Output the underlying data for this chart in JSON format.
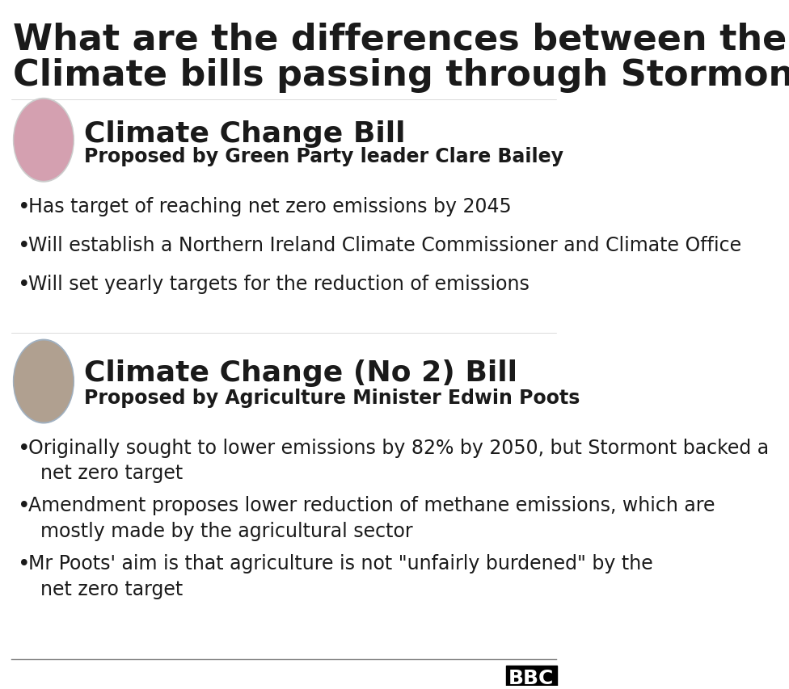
{
  "bg_color": "#ffffff",
  "title_line1": "What are the differences between the",
  "title_line2": "Climate bills passing through Stormont?",
  "title_fontsize": 32,
  "title_color": "#1a1a1a",
  "title_weight": "bold",
  "bill1_title": "Climate Change Bill",
  "bill1_subtitle": "Proposed by Green Party leader Clare Bailey",
  "bill1_title_fontsize": 26,
  "bill1_subtitle_fontsize": 17,
  "bill1_title_weight": "bold",
  "bill1_subtitle_weight": "bold",
  "bill1_bullets": [
    "Has target of reaching net zero emissions by 2045",
    "Will establish a Northern Ireland Climate Commissioner and Climate Office",
    "Will set yearly targets for the reduction of emissions"
  ],
  "bill1_bullet_fontsize": 17,
  "bill2_title": "Climate Change (No 2) Bill",
  "bill2_subtitle": "Proposed by Agriculture Minister Edwin Poots",
  "bill2_title_fontsize": 26,
  "bill2_subtitle_fontsize": 17,
  "bill2_title_weight": "bold",
  "bill2_subtitle_weight": "bold",
  "bill2_bullets": [
    "Originally sought to lower emissions by 82% by 2050, but Stormont backed a\n  net zero target",
    "Amendment proposes lower reduction of methane emissions, which are\n  mostly made by the agricultural sector",
    "Mr Poots' aim is that agriculture is not \"unfairly burdened\" by the\n  net zero target"
  ],
  "bill2_bullet_fontsize": 17,
  "bullet_color": "#1a1a1a",
  "text_color": "#1a1a1a",
  "divider_color": "#aaaaaa",
  "bbc_bg": "#000000",
  "bbc_text": "#ffffff"
}
